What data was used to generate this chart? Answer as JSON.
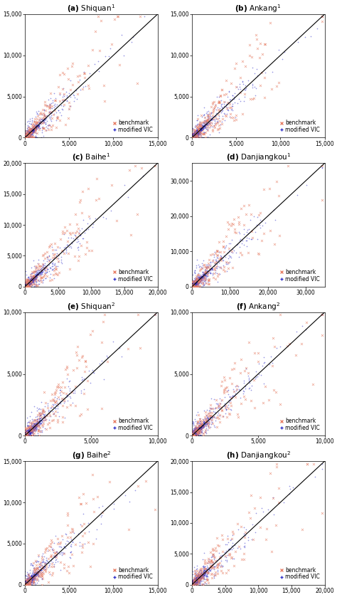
{
  "panels": [
    {
      "label": "a",
      "title": "Shiquan",
      "superscript": "1",
      "xlim": [
        0,
        15000
      ],
      "ylim": [
        0,
        15000
      ],
      "xticks": [
        0,
        5000,
        10000,
        15000
      ],
      "yticks": [
        0,
        5000,
        10000,
        15000
      ]
    },
    {
      "label": "b",
      "title": "Ankang",
      "superscript": "1",
      "xlim": [
        0,
        15000
      ],
      "ylim": [
        0,
        15000
      ],
      "xticks": [
        0,
        5000,
        10000,
        15000
      ],
      "yticks": [
        0,
        5000,
        10000,
        15000
      ]
    },
    {
      "label": "c",
      "title": "Baihe",
      "superscript": "1",
      "xlim": [
        0,
        20000
      ],
      "ylim": [
        0,
        20000
      ],
      "xticks": [
        0,
        5000,
        10000,
        15000,
        20000
      ],
      "yticks": [
        0,
        5000,
        10000,
        15000,
        20000
      ]
    },
    {
      "label": "d",
      "title": "Danjiangkou",
      "superscript": "1",
      "xlim": [
        0,
        35000
      ],
      "ylim": [
        0,
        35000
      ],
      "xticks": [
        0,
        10000,
        20000,
        30000
      ],
      "yticks": [
        0,
        10000,
        20000,
        30000
      ]
    },
    {
      "label": "e",
      "title": "Shiquan",
      "superscript": "2",
      "xlim": [
        0,
        10000
      ],
      "ylim": [
        0,
        10000
      ],
      "xticks": [
        0,
        5000,
        10000
      ],
      "yticks": [
        0,
        5000,
        10000
      ]
    },
    {
      "label": "f",
      "title": "Ankang",
      "superscript": "2",
      "xlim": [
        0,
        10000
      ],
      "ylim": [
        0,
        10000
      ],
      "xticks": [
        0,
        5000,
        10000
      ],
      "yticks": [
        0,
        5000,
        10000
      ]
    },
    {
      "label": "g",
      "title": "Baihe",
      "superscript": "2",
      "xlim": [
        0,
        15000
      ],
      "ylim": [
        0,
        15000
      ],
      "xticks": [
        0,
        5000,
        10000,
        15000
      ],
      "yticks": [
        0,
        5000,
        10000,
        15000
      ]
    },
    {
      "label": "h",
      "title": "Danjiangkou",
      "superscript": "2",
      "xlim": [
        0,
        20000
      ],
      "ylim": [
        0,
        20000
      ],
      "xticks": [
        0,
        5000,
        10000,
        15000,
        20000
      ],
      "yticks": [
        0,
        5000,
        10000,
        15000,
        20000
      ]
    }
  ],
  "benchmark_color": "#E8826A",
  "modified_vic_color": "#3030C8",
  "line_color": "black",
  "background_color": "white",
  "tick_label_fontsize": 5.5,
  "title_fontsize": 7.5,
  "legend_fontsize": 5.5,
  "n_benchmark": 200,
  "n_modified_dense": 2000,
  "n_modified_sparse": 300
}
